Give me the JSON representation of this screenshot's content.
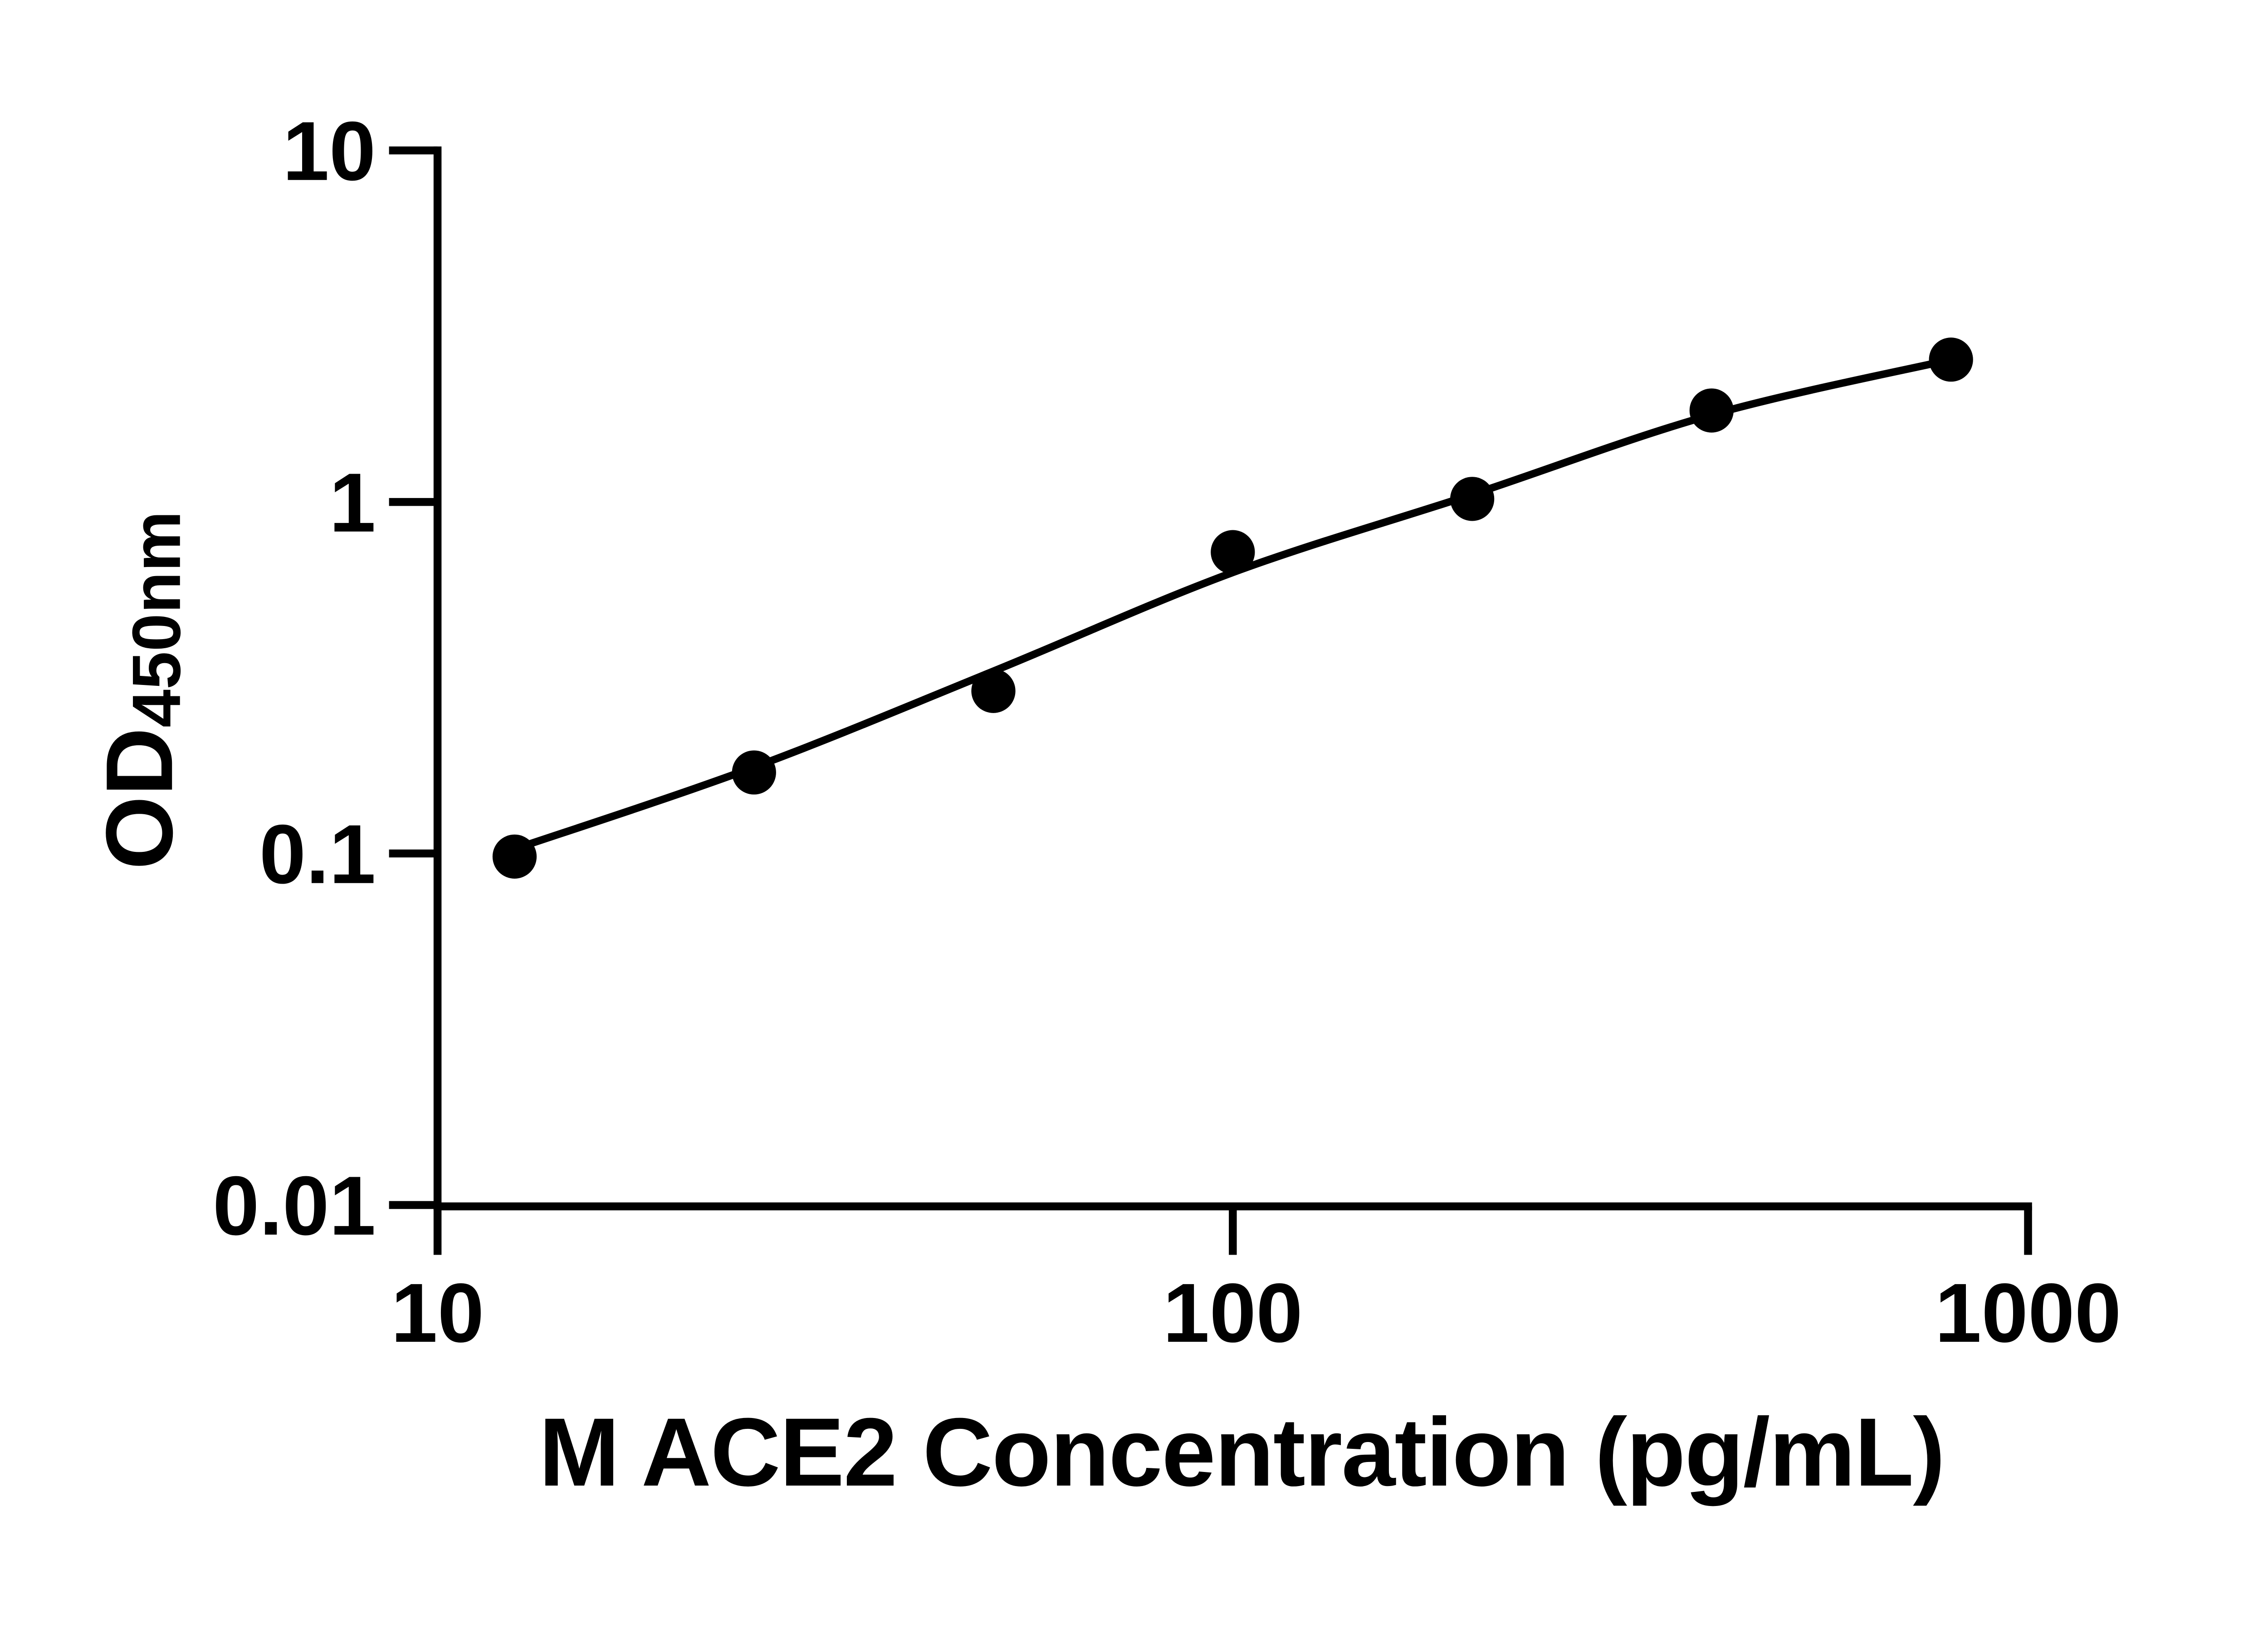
{
  "chart_data": {
    "type": "scatter",
    "subtype": "elisa-standard-curve-with-fit-line",
    "title": "",
    "xlabel": "M ACE2 Concentration (pg/mL)",
    "ylabel_main": "OD",
    "ylabel_sub": "450nm",
    "x_scale": "log10",
    "y_scale": "log10",
    "xlim": [
      10,
      1000
    ],
    "ylim": [
      0.01,
      10
    ],
    "x_ticks": [
      10,
      100,
      1000
    ],
    "y_ticks": [
      10,
      1,
      0.1,
      0.01
    ],
    "grid": false,
    "legend": false,
    "background_color": "#ffffff",
    "marker_color": "#000000",
    "line_color": "#000000",
    "points": [
      {
        "conc": 12.5,
        "od": 0.098
      },
      {
        "conc": 25,
        "od": 0.17
      },
      {
        "conc": 50,
        "od": 0.29
      },
      {
        "conc": 100,
        "od": 0.72
      },
      {
        "conc": 200,
        "od": 1.02
      },
      {
        "conc": 400,
        "od": 1.82
      },
      {
        "conc": 800,
        "od": 2.54
      }
    ],
    "fit_curve_od": [
      0.103,
      0.176,
      0.33,
      0.63,
      1.05,
      1.77,
      2.54
    ]
  }
}
